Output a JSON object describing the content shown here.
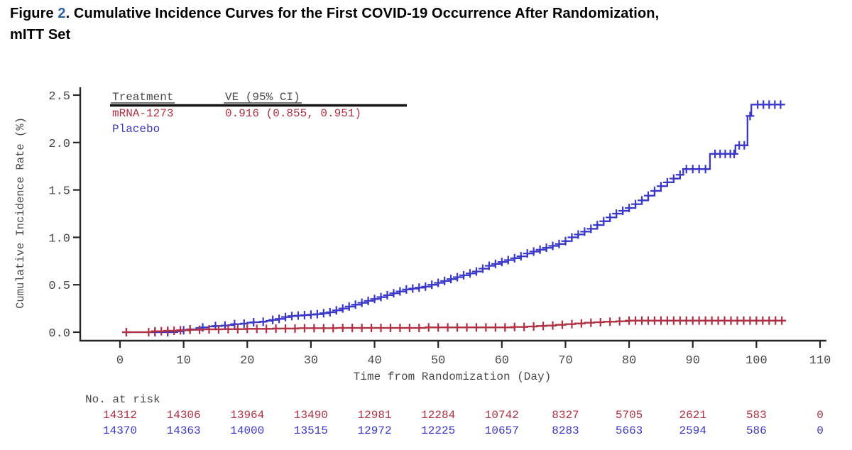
{
  "header": {
    "figure_word": "Figure ",
    "figure_number": "2",
    "title_rest": ". Cumulative Incidence Curves for the First COVID-19 Occurrence After Randomization,",
    "title_line2": "mITT Set"
  },
  "colors": {
    "figure_number": "#2e64a6",
    "axis_text": "#4a4a4a",
    "axis_line": "#262626",
    "legend_rule": "#111111",
    "mrna": "#b13043",
    "placebo": "#3a38c8"
  },
  "chart_data": {
    "type": "line",
    "subtype": "kaplan-meier-cumulative-incidence-step",
    "xlabel": "Time from Randomization (Day)",
    "ylabel": "Cumulative Incidence Rate (%)",
    "xlim": [
      0,
      110
    ],
    "ylim": [
      0,
      2.5
    ],
    "xticks": [
      0,
      10,
      20,
      30,
      40,
      50,
      60,
      70,
      80,
      90,
      100,
      110
    ],
    "yticks": [
      "0.0",
      "0.5",
      "1.0",
      "1.5",
      "2.0",
      "2.5"
    ],
    "grid": false,
    "legend": {
      "position": "top-left",
      "col1_header": "Treatment",
      "col2_header": "VE (95% CI)",
      "rows": [
        {
          "treatment": "mRNA-1273",
          "ve": "0.916 (0.855, 0.951)",
          "color": "#b13043"
        },
        {
          "treatment": "Placebo",
          "ve": "",
          "color": "#3a38c8"
        }
      ]
    },
    "series": [
      {
        "name": "Placebo",
        "color": "#3a38c8",
        "steps": [
          [
            1,
            0
          ],
          [
            8,
            0
          ],
          [
            9,
            0.01
          ],
          [
            10,
            0.02
          ],
          [
            11,
            0.03
          ],
          [
            12,
            0.045
          ],
          [
            13,
            0.05
          ],
          [
            14,
            0.06
          ],
          [
            15,
            0.065
          ],
          [
            16,
            0.07
          ],
          [
            17,
            0.075
          ],
          [
            18,
            0.085
          ],
          [
            19,
            0.09
          ],
          [
            20,
            0.1
          ],
          [
            21,
            0.105
          ],
          [
            22,
            0.11
          ],
          [
            23,
            0.12
          ],
          [
            24,
            0.13
          ],
          [
            25,
            0.14
          ],
          [
            26,
            0.16
          ],
          [
            27,
            0.17
          ],
          [
            28,
            0.175
          ],
          [
            29,
            0.18
          ],
          [
            30,
            0.185
          ],
          [
            31,
            0.19
          ],
          [
            32,
            0.2
          ],
          [
            33,
            0.21
          ],
          [
            34,
            0.23
          ],
          [
            35,
            0.25
          ],
          [
            36,
            0.27
          ],
          [
            37,
            0.29
          ],
          [
            38,
            0.31
          ],
          [
            39,
            0.33
          ],
          [
            40,
            0.35
          ],
          [
            41,
            0.37
          ],
          [
            42,
            0.39
          ],
          [
            43,
            0.41
          ],
          [
            44,
            0.43
          ],
          [
            45,
            0.45
          ],
          [
            46,
            0.46
          ],
          [
            47,
            0.47
          ],
          [
            48,
            0.48
          ],
          [
            49,
            0.5
          ],
          [
            50,
            0.52
          ],
          [
            51,
            0.54
          ],
          [
            52,
            0.56
          ],
          [
            53,
            0.58
          ],
          [
            54,
            0.6
          ],
          [
            55,
            0.62
          ],
          [
            56,
            0.64
          ],
          [
            57,
            0.67
          ],
          [
            58,
            0.7
          ],
          [
            59,
            0.72
          ],
          [
            60,
            0.74
          ],
          [
            61,
            0.76
          ],
          [
            62,
            0.78
          ],
          [
            63,
            0.8
          ],
          [
            64,
            0.83
          ],
          [
            65,
            0.85
          ],
          [
            66,
            0.87
          ],
          [
            67,
            0.89
          ],
          [
            68,
            0.91
          ],
          [
            69,
            0.93
          ],
          [
            70,
            0.96
          ],
          [
            71,
            1.0
          ],
          [
            72,
            1.03
          ],
          [
            73,
            1.06
          ],
          [
            74,
            1.09
          ],
          [
            75,
            1.13
          ],
          [
            76,
            1.17
          ],
          [
            77,
            1.21
          ],
          [
            78,
            1.25
          ],
          [
            79,
            1.28
          ],
          [
            80,
            1.31
          ],
          [
            81,
            1.35
          ],
          [
            82,
            1.39
          ],
          [
            83,
            1.44
          ],
          [
            84,
            1.49
          ],
          [
            85,
            1.54
          ],
          [
            86,
            1.58
          ],
          [
            87,
            1.62
          ],
          [
            88,
            1.66
          ],
          [
            88.5,
            1.72
          ],
          [
            92.7,
            1.88
          ],
          [
            96.7,
            1.97
          ],
          [
            98.6,
            2.28
          ],
          [
            99.2,
            2.4
          ],
          [
            104.5,
            2.4
          ]
        ],
        "censors": [
          1,
          5.5,
          7.5,
          10,
          11,
          13,
          15,
          16.5,
          18,
          19.5,
          21,
          22.5,
          24,
          25,
          26,
          27,
          28,
          29,
          30,
          31,
          32,
          33,
          34,
          35,
          36,
          37,
          38,
          39,
          40,
          41,
          42,
          43,
          44,
          45,
          46,
          47,
          48,
          49,
          50,
          51,
          52,
          53,
          54,
          55,
          56,
          57,
          58,
          59,
          60,
          61,
          62,
          63,
          64,
          65,
          66,
          67,
          68,
          69,
          70,
          71,
          72,
          73,
          74,
          75,
          76,
          77,
          78,
          79,
          80,
          81,
          82,
          83,
          84,
          85,
          86,
          87,
          88,
          89,
          90,
          91,
          92,
          93.5,
          94.3,
          95.1,
          95.9,
          96.5,
          97.3,
          98.1,
          99,
          100.2,
          101.1,
          102,
          102.9,
          103.8
        ]
      },
      {
        "name": "mRNA-1273",
        "color": "#b13043",
        "steps": [
          [
            1,
            0
          ],
          [
            4,
            0
          ],
          [
            5,
            0.01
          ],
          [
            7,
            0.015
          ],
          [
            9,
            0.02
          ],
          [
            11,
            0.025
          ],
          [
            13,
            0.03
          ],
          [
            16,
            0.032
          ],
          [
            20,
            0.035
          ],
          [
            24,
            0.038
          ],
          [
            28,
            0.042
          ],
          [
            34,
            0.045
          ],
          [
            48,
            0.05
          ],
          [
            62,
            0.055
          ],
          [
            64,
            0.06
          ],
          [
            65.5,
            0.065
          ],
          [
            67,
            0.07
          ],
          [
            68.5,
            0.078
          ],
          [
            70,
            0.085
          ],
          [
            71.5,
            0.092
          ],
          [
            73,
            0.1
          ],
          [
            74.5,
            0.105
          ],
          [
            76,
            0.11
          ],
          [
            78,
            0.115
          ],
          [
            80,
            0.122
          ],
          [
            104.5,
            0.122
          ]
        ],
        "censors": [
          1,
          4.5,
          5.5,
          6.5,
          7.5,
          8.5,
          9.5,
          11,
          12.5,
          14,
          15.5,
          17,
          18.5,
          20,
          21.5,
          23,
          24.5,
          26,
          27.5,
          29,
          30.5,
          32,
          33.5,
          35,
          36.5,
          38,
          39.5,
          41,
          42.5,
          44,
          45.5,
          47,
          48.5,
          50,
          51.5,
          53,
          54.5,
          56,
          57.5,
          59,
          60.5,
          62,
          63.5,
          65,
          66.5,
          68,
          69.5,
          71,
          72.5,
          74,
          75.5,
          77,
          78.5,
          80,
          81,
          82,
          83,
          84,
          85,
          86,
          87,
          88,
          89,
          90,
          91,
          92,
          93,
          94,
          95,
          96,
          97,
          98,
          99,
          100,
          101,
          102,
          103,
          104
        ]
      }
    ],
    "risk_table": {
      "label": "No. at risk",
      "rows": [
        {
          "name": "mRNA-1273",
          "color": "#b13043",
          "values": [
            "14312",
            "14306",
            "13964",
            "13490",
            "12981",
            "12284",
            "10742",
            "8327",
            "5705",
            "2621",
            "583",
            "0"
          ]
        },
        {
          "name": "Placebo",
          "color": "#3a38c8",
          "values": [
            "14370",
            "14363",
            "14000",
            "13515",
            "12972",
            "12225",
            "10657",
            "8283",
            "5663",
            "2594",
            "586",
            "0"
          ]
        }
      ]
    }
  }
}
